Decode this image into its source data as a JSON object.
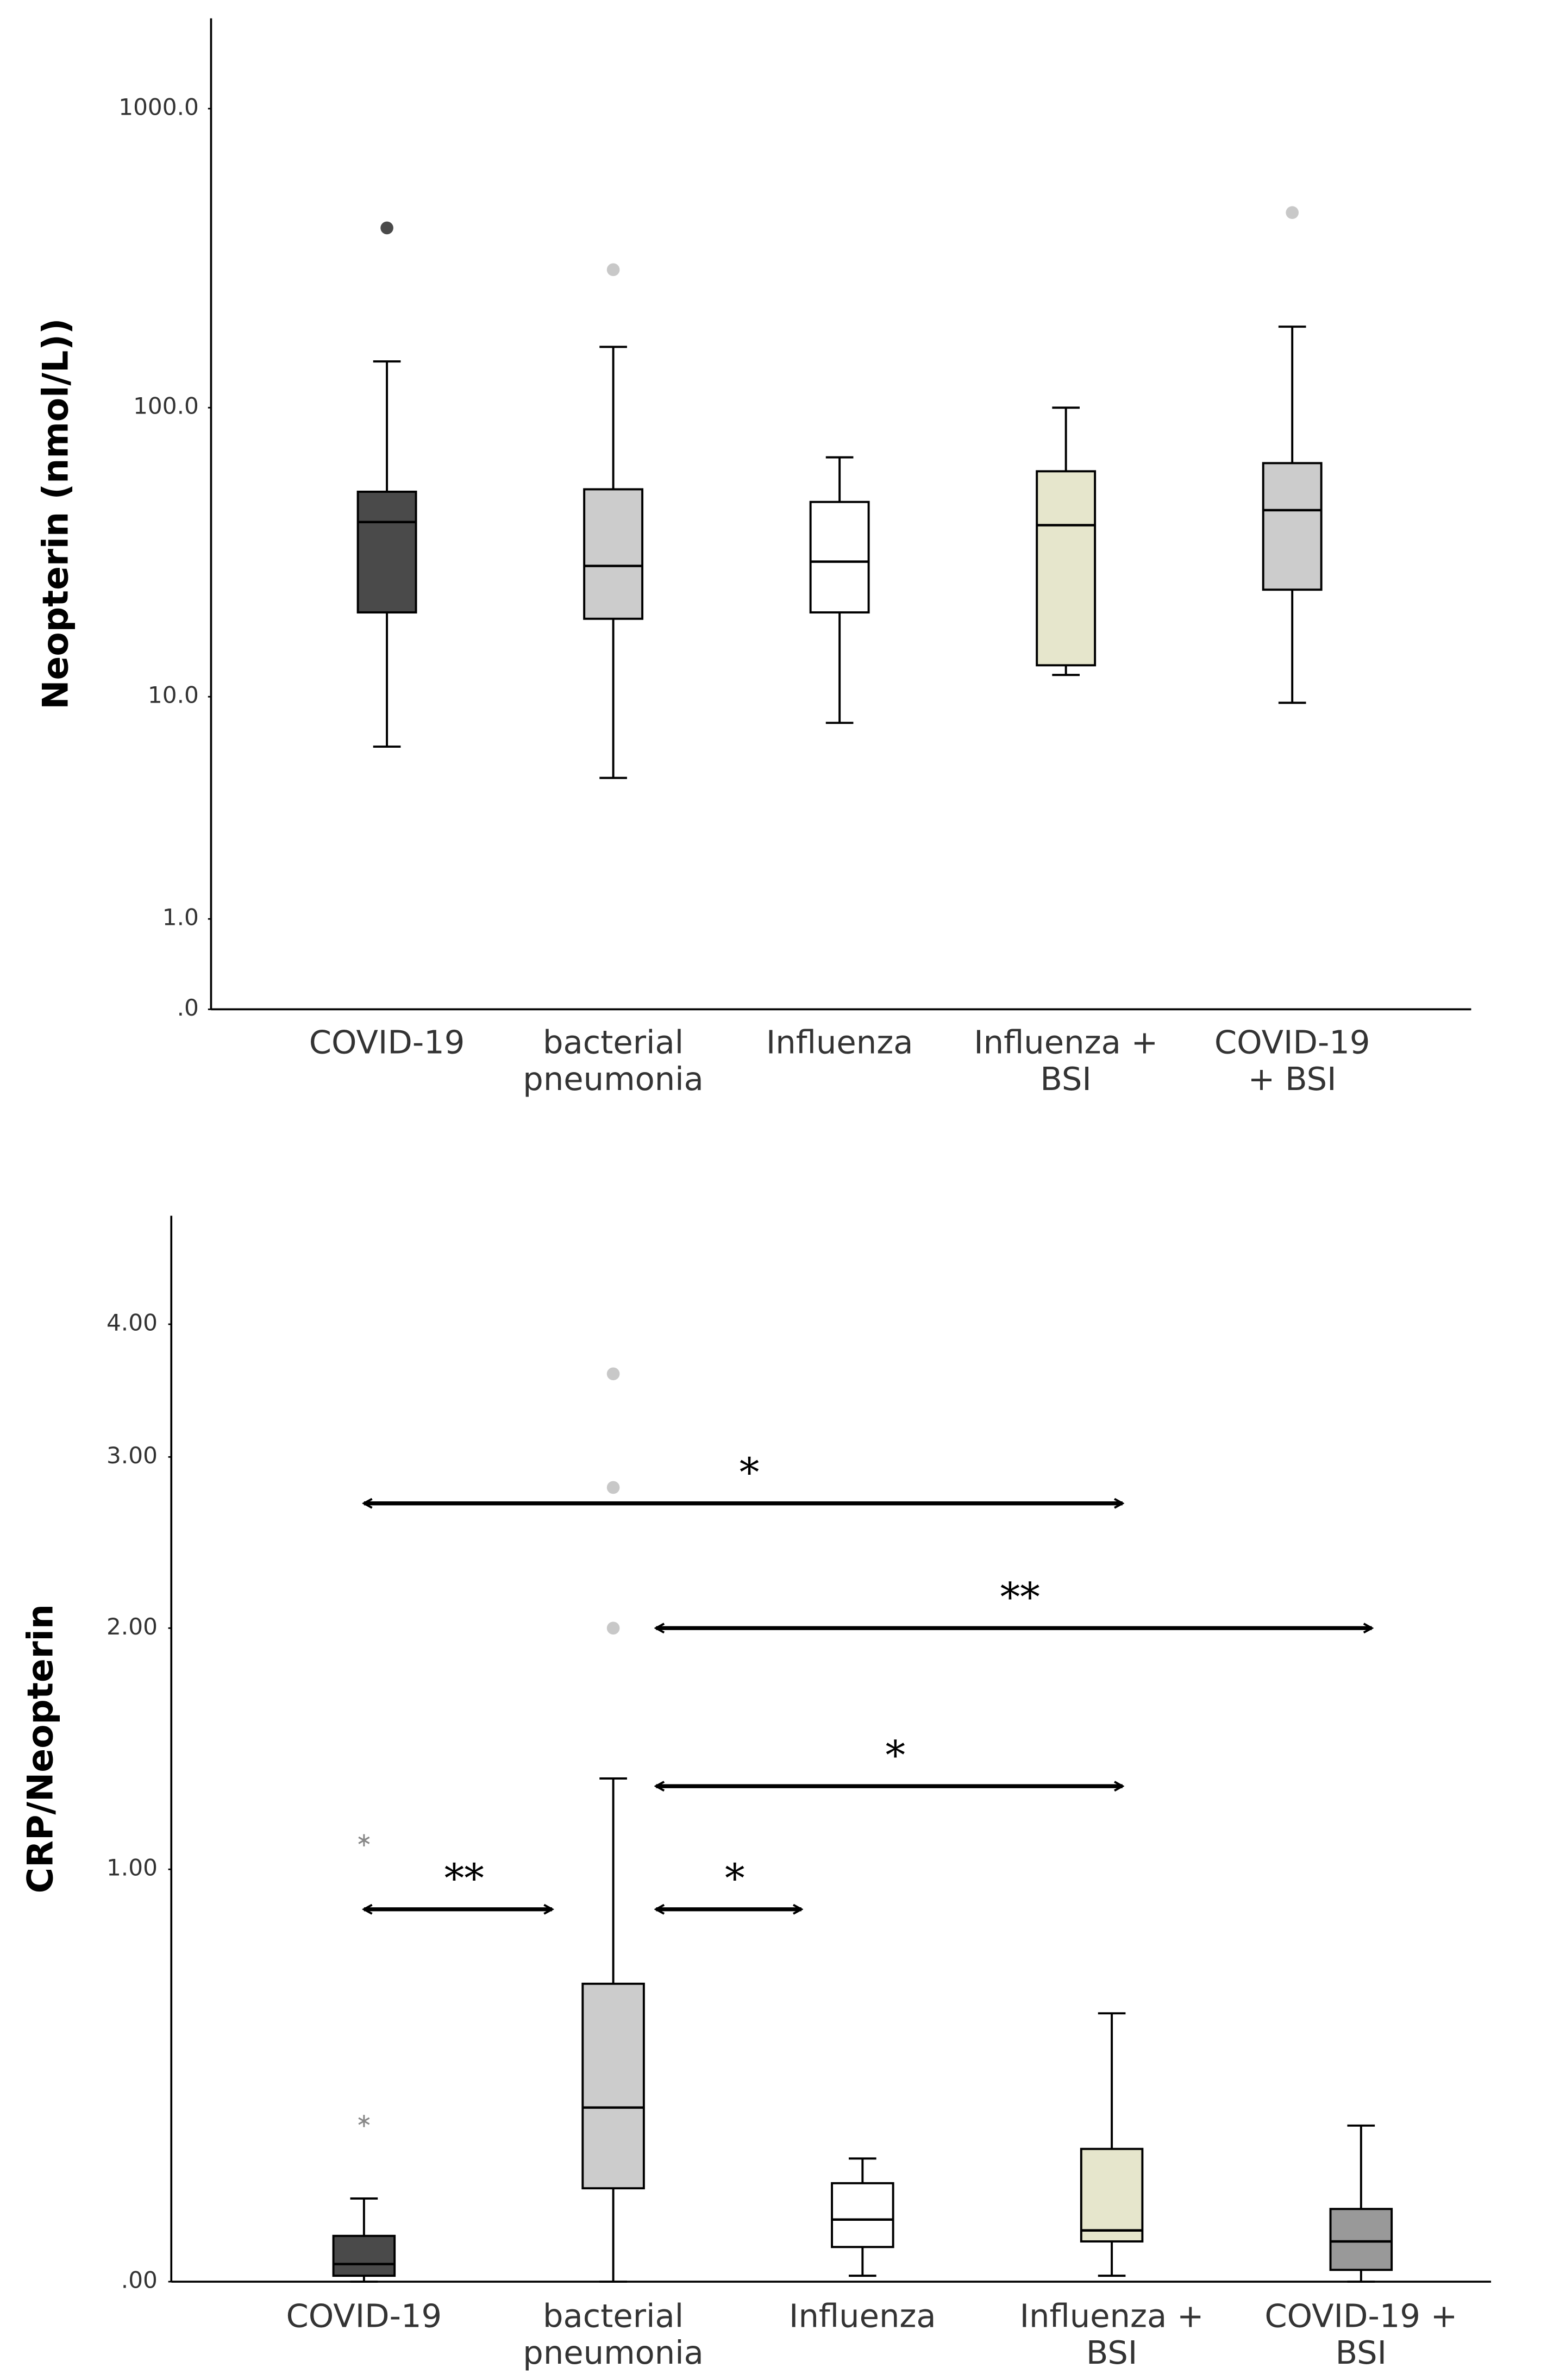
{
  "chart_data": [
    {
      "type": "box",
      "y_label": "Neopterin (nmol/L))",
      "y_scale": "log1p",
      "ylim": [
        0,
        2000
      ],
      "yticks": [
        {
          "value": 0,
          "label": ".0"
        },
        {
          "value": 1,
          "label": "1.0"
        },
        {
          "value": 10,
          "label": "10.0"
        },
        {
          "value": 100,
          "label": "100.0"
        },
        {
          "value": 1000,
          "label": "1000.0"
        }
      ],
      "categories": [
        [
          "COVID-19"
        ],
        [
          "bacterial",
          "pneumonia"
        ],
        [
          "Influenza"
        ],
        [
          "Influenza +",
          "BSI"
        ],
        [
          "COVID-19",
          "+ BSI"
        ]
      ],
      "boxes": [
        {
          "whisker_low": 6.5,
          "q1": 20,
          "median": 41,
          "q3": 52,
          "whisker_high": 143,
          "outliers": [
            400
          ],
          "color": "#4a4a4a",
          "outlier_color": "#4a4a4a",
          "outlier_marker": "dot"
        },
        {
          "whisker_low": 4.9,
          "q1": 19,
          "median": 29,
          "q3": 53,
          "whisker_high": 160,
          "outliers": [
            290
          ],
          "color": "#cccccc",
          "outlier_color": "#c8c8c8",
          "outlier_marker": "dot"
        },
        {
          "whisker_low": 8,
          "q1": 20,
          "median": 30,
          "q3": 48,
          "whisker_high": 68,
          "outliers": [],
          "color": "#ffffff",
          "outlier_color": "#c8c8c8",
          "outlier_marker": "dot"
        },
        {
          "whisker_low": 12,
          "q1": 13,
          "median": 40,
          "q3": 61,
          "whisker_high": 100,
          "outliers": [],
          "color": "#e6e6cc",
          "outlier_color": "#c8c8c8",
          "outlier_marker": "dot"
        },
        {
          "whisker_low": 9.5,
          "q1": 24,
          "median": 45,
          "q3": 65,
          "whisker_high": 187,
          "outliers": [
            450
          ],
          "color": "#cccccc",
          "outlier_color": "#c8c8c8",
          "outlier_marker": "dot"
        }
      ],
      "annotations": []
    },
    {
      "type": "box",
      "y_label": "CRP/Neopterin",
      "y_scale": "log1p",
      "ylim": [
        0,
        5
      ],
      "yticks": [
        {
          "value": 0,
          "label": ".00"
        },
        {
          "value": 1,
          "label": "1.00"
        },
        {
          "value": 2,
          "label": "2.00"
        },
        {
          "value": 3,
          "label": "3.00"
        },
        {
          "value": 4,
          "label": "4.00"
        }
      ],
      "categories": [
        [
          "COVID-19"
        ],
        [
          "bacterial",
          "pneumonia"
        ],
        [
          "Influenza"
        ],
        [
          "Influenza +",
          "BSI"
        ],
        [
          "COVID-19 +",
          "BSI"
        ]
      ],
      "boxes": [
        {
          "whisker_low": 0,
          "q1": 0.01,
          "median": 0.03,
          "q3": 0.08,
          "whisker_high": 0.15,
          "outliers": [
            1.1,
            0.31
          ],
          "color": "#4a4a4a",
          "outlier_color": "#888888",
          "outlier_marker": "asterisk"
        },
        {
          "whisker_low": 0,
          "q1": 0.17,
          "median": 0.34,
          "q3": 0.65,
          "whisker_high": 1.33,
          "outliers": [
            3.6,
            2.8,
            2.0
          ],
          "color": "#cccccc",
          "outlier_color": "#c8c8c8",
          "outlier_marker": "dot"
        },
        {
          "whisker_low": 0.01,
          "q1": 0.06,
          "median": 0.11,
          "q3": 0.18,
          "whisker_high": 0.23,
          "outliers": [],
          "color": "#ffffff",
          "outlier_color": "#c8c8c8",
          "outlier_marker": "dot"
        },
        {
          "whisker_low": 0.01,
          "q1": 0.07,
          "median": 0.09,
          "q3": 0.25,
          "whisker_high": 0.57,
          "outliers": [],
          "color": "#e6e6cc",
          "outlier_color": "#c8c8c8",
          "outlier_marker": "dot"
        },
        {
          "whisker_low": 0,
          "q1": 0.02,
          "median": 0.07,
          "q3": 0.13,
          "whisker_high": 0.3,
          "outliers": [],
          "color": "#999999",
          "outlier_color": "#c8c8c8",
          "outlier_marker": "dot"
        }
      ],
      "annotations": [
        {
          "from": 0,
          "to": 3,
          "y": 2.7,
          "label": "*"
        },
        {
          "from": 1,
          "to": 4,
          "y": 2.0,
          "label": "**"
        },
        {
          "from": 1,
          "to": 3,
          "y": 1.3,
          "label": "*"
        },
        {
          "from": 0,
          "to": 1,
          "y": 0.87,
          "label": "**"
        },
        {
          "from": 1,
          "to": 2,
          "y": 0.87,
          "label": "*"
        }
      ]
    }
  ]
}
